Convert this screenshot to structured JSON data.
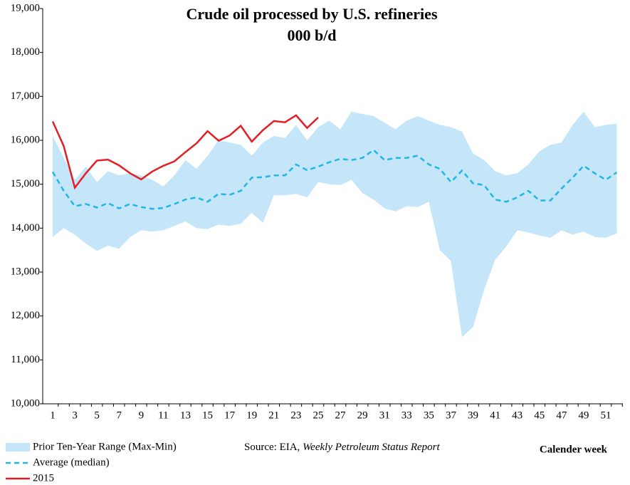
{
  "chart_data": {
    "type": "line",
    "title": "Crude oil processed by U.S. refineries",
    "subtitle": "000 b/d",
    "x_label": "Calender week",
    "source": {
      "prefix": "Source: EIA, ",
      "title": "Weekly Petroleum Status Report"
    },
    "categories": [
      1,
      null,
      3,
      null,
      5,
      null,
      7,
      null,
      9,
      null,
      11,
      null,
      13,
      null,
      15,
      null,
      17,
      null,
      19,
      null,
      21,
      null,
      23,
      null,
      25,
      null,
      27,
      null,
      29,
      null,
      31,
      null,
      33,
      null,
      35,
      null,
      37,
      null,
      39,
      null,
      41,
      null,
      43,
      null,
      45,
      null,
      47,
      null,
      49,
      null,
      51,
      null
    ],
    "ylim": [
      10000,
      19000
    ],
    "yticks": [
      {
        "value": 10000,
        "label": "10,000"
      },
      {
        "value": 11000,
        "label": "11,000"
      },
      {
        "value": 12000,
        "label": "12,000"
      },
      {
        "value": 13000,
        "label": "13,000"
      },
      {
        "value": 14000,
        "label": "14,000"
      },
      {
        "value": 15000,
        "label": "15,000"
      },
      {
        "value": 16000,
        "label": "16,000"
      },
      {
        "value": 17000,
        "label": "17,000"
      },
      {
        "value": 18000,
        "label": "18,000"
      },
      {
        "value": 19000,
        "label": "19,000"
      }
    ],
    "grid": false,
    "legend": "bottom-left",
    "series": [
      {
        "name": "Prior Ten-Year Range (Max-Min)",
        "color": "#c5e6f8",
        "style": "range",
        "high": [
          16100,
          15600,
          15100,
          15400,
          15050,
          15300,
          15200,
          15250,
          15200,
          15100,
          14950,
          15200,
          15550,
          15350,
          15650,
          16000,
          15950,
          15900,
          15650,
          15950,
          16100,
          16050,
          16350,
          16000,
          16300,
          16450,
          16250,
          16650,
          16600,
          16550,
          16400,
          16250,
          16450,
          16550,
          16450,
          16350,
          16300,
          16200,
          15700,
          15550,
          15300,
          15200,
          15250,
          15450,
          15750,
          15900,
          15950,
          16350,
          16650,
          16300,
          16350,
          16380
        ],
        "low": [
          13800,
          14000,
          13850,
          13650,
          13480,
          13600,
          13530,
          13800,
          13950,
          13920,
          13950,
          14050,
          14150,
          14000,
          13980,
          14080,
          14050,
          14100,
          14350,
          14120,
          14750,
          14750,
          14780,
          14700,
          15050,
          15000,
          14980,
          15100,
          14800,
          14650,
          14450,
          14380,
          14500,
          14480,
          14600,
          13500,
          13250,
          11520,
          11750,
          12600,
          13280,
          13580,
          13950,
          13900,
          13830,
          13780,
          13950,
          13850,
          13920,
          13800,
          13780,
          13880
        ]
      },
      {
        "name": "Average (median)",
        "color": "#1fb7e6",
        "style": "dashed",
        "values": [
          15280,
          14850,
          14500,
          14550,
          14470,
          14570,
          14450,
          14550,
          14480,
          14440,
          14460,
          14550,
          14650,
          14700,
          14600,
          14780,
          14760,
          14850,
          15150,
          15160,
          15200,
          15200,
          15450,
          15320,
          15400,
          15500,
          15580,
          15550,
          15600,
          15780,
          15550,
          15600,
          15600,
          15650,
          15450,
          15350,
          15050,
          15310,
          15020,
          14980,
          14650,
          14600,
          14700,
          14850,
          14630,
          14630,
          14900,
          15150,
          15420,
          15250,
          15100,
          15270
        ]
      },
      {
        "name": "2015",
        "color": "#e31e24",
        "style": "solid",
        "values": [
          16430,
          15870,
          14920,
          15250,
          15540,
          15560,
          15430,
          15250,
          15110,
          15290,
          15420,
          15520,
          15730,
          15930,
          16210,
          15990,
          16110,
          16330,
          15970,
          16230,
          16440,
          16410,
          16570,
          16280,
          16520,
          null,
          null,
          null,
          null,
          null,
          null,
          null,
          null,
          null,
          null,
          null,
          null,
          null,
          null,
          null,
          null,
          null,
          null,
          null,
          null,
          null,
          null,
          null,
          null,
          null,
          null,
          null
        ]
      }
    ]
  }
}
